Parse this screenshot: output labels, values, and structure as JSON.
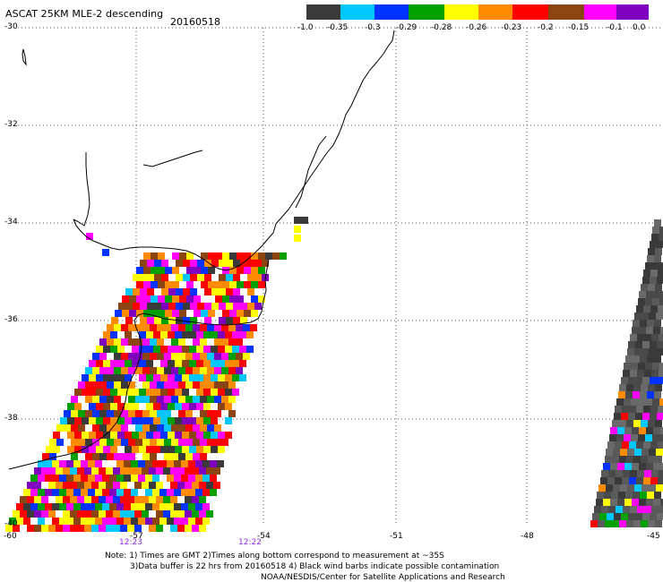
{
  "header": {
    "title": "ASCAT 25KM MLE-2 descending",
    "date": "20160518"
  },
  "colorbar": {
    "colors": [
      "#3a3a3a",
      "#00c8ff",
      "#0033ff",
      "#00a000",
      "#ffff00",
      "#ff8c00",
      "#ff0000",
      "#8b4513",
      "#ff00ff",
      "#8000c0"
    ],
    "labels": [
      "-1.0",
      "-0.35",
      "-0.3",
      "-0.29",
      "-0.28",
      "-0.26",
      "-0.23",
      "-0.2",
      "-0.15",
      "-0.1",
      "0.0"
    ]
  },
  "map": {
    "lat_labels": [
      "-30",
      "-32",
      "-34",
      "-36",
      "-38",
      "-40"
    ],
    "lon_labels": [
      "-60",
      "-57",
      "-54",
      "-51",
      "-48",
      "-45"
    ],
    "times": [
      "12:23",
      "12:22"
    ]
  },
  "notes": {
    "line1": "Note: 1) Times are GMT 2)Times along bottom correspond to measurement at ~35S",
    "line2": "3)Data buffer is 22 hrs from 20160518 4) Black wind barbs indicate possible contamination",
    "line3": "NOAA/NESDIS/Center for Satellite Applications and Research"
  }
}
